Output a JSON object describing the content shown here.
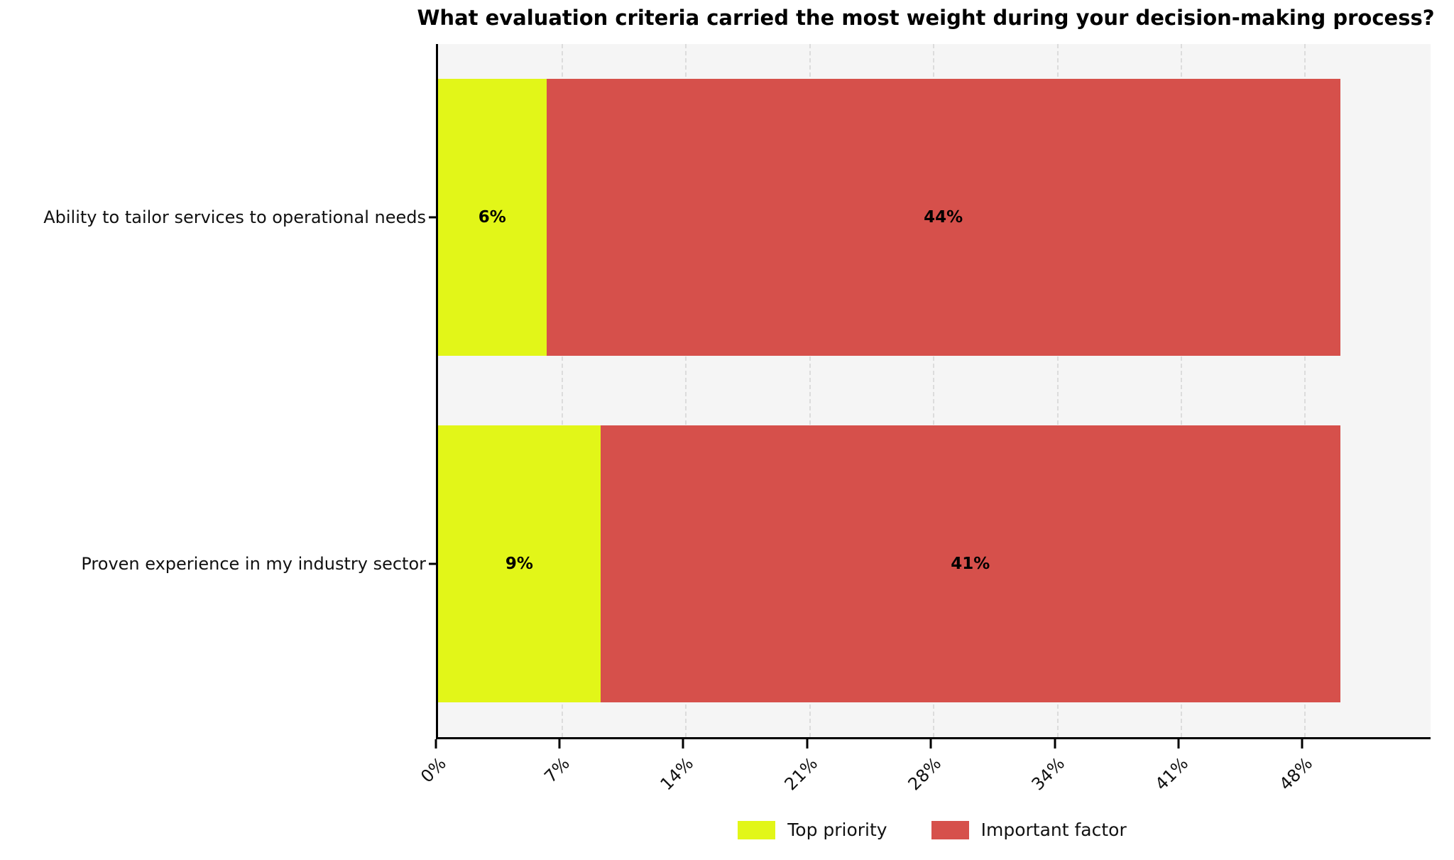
{
  "title": "What evaluation criteria carried the most weight during your decision-making process?",
  "colors": {
    "figure_background": "#ffffff",
    "plot_background": "#f5f5f5",
    "gridline": "#dcdcdc",
    "axis": "#000000",
    "top_priority": "#e2f618",
    "important_factor": "#d6504b"
  },
  "chart_data": {
    "type": "bar",
    "orientation": "horizontal",
    "stacked": true,
    "title": "What evaluation criteria carried the most weight during your decision-making process?",
    "categories": [
      "Ability to tailor services to operational needs",
      "Proven experience in my industry sector"
    ],
    "series": [
      {
        "name": "Top priority",
        "color": "#e2f618",
        "values": [
          6,
          9
        ]
      },
      {
        "name": "Important factor",
        "color": "#d6504b",
        "values": [
          44,
          41
        ]
      }
    ],
    "value_suffix": "%",
    "xlabel": "",
    "ylabel": "",
    "xlim": [
      0,
      55
    ],
    "xticks": [
      {
        "value": 0,
        "label": "0%"
      },
      {
        "value": 6.86,
        "label": "7%"
      },
      {
        "value": 13.71,
        "label": "14%"
      },
      {
        "value": 20.57,
        "label": "21%"
      },
      {
        "value": 27.43,
        "label": "28%"
      },
      {
        "value": 34.29,
        "label": "34%"
      },
      {
        "value": 41.14,
        "label": "41%"
      },
      {
        "value": 48,
        "label": "48%"
      }
    ],
    "grid": "vertical-dashed",
    "bar_band_fraction": 0.8,
    "legend_position": "bottom-center",
    "legend": [
      "Top priority",
      "Important factor"
    ]
  }
}
